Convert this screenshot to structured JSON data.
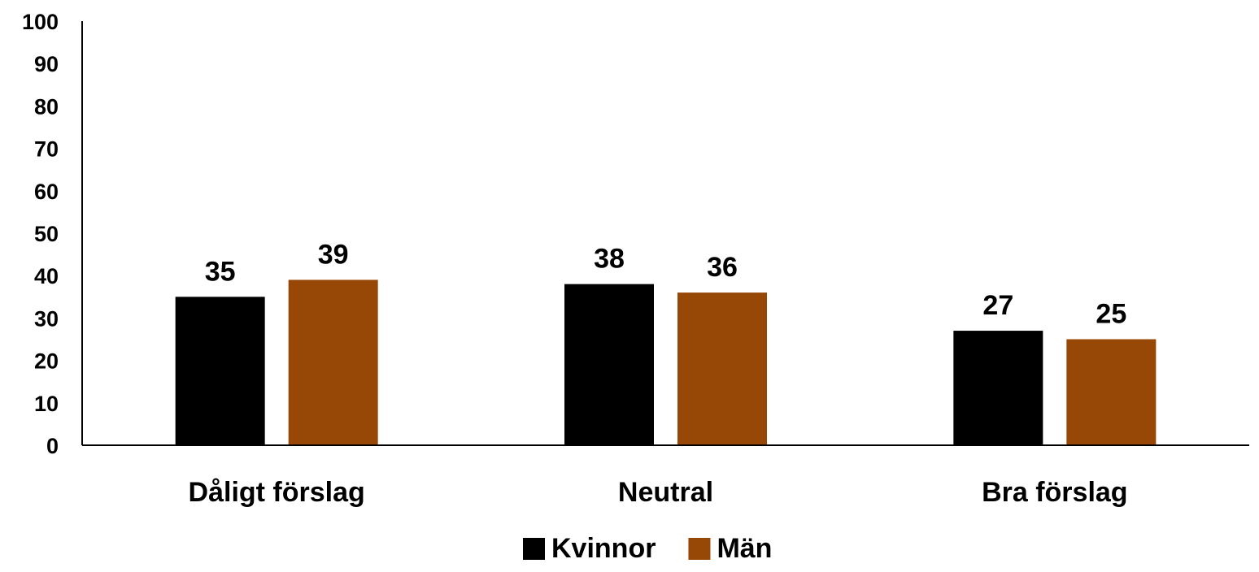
{
  "chart_data": {
    "type": "bar",
    "title": "",
    "xlabel": "",
    "ylabel": "",
    "ylim": [
      0,
      100
    ],
    "yticks": [
      0,
      10,
      20,
      30,
      40,
      50,
      60,
      70,
      80,
      90,
      100
    ],
    "categories": [
      "Dåligt förslag",
      "Neutral",
      "Bra förslag"
    ],
    "series": [
      {
        "name": "Kvinnor",
        "color": "#000000",
        "values": [
          35,
          38,
          27
        ],
        "labels": [
          "35",
          "38",
          "27"
        ]
      },
      {
        "name": "Män",
        "color": "#974706",
        "values": [
          39,
          36,
          25
        ],
        "labels": [
          "39",
          "36",
          "25"
        ]
      }
    ],
    "grid": false,
    "legend_position": "bottom"
  }
}
